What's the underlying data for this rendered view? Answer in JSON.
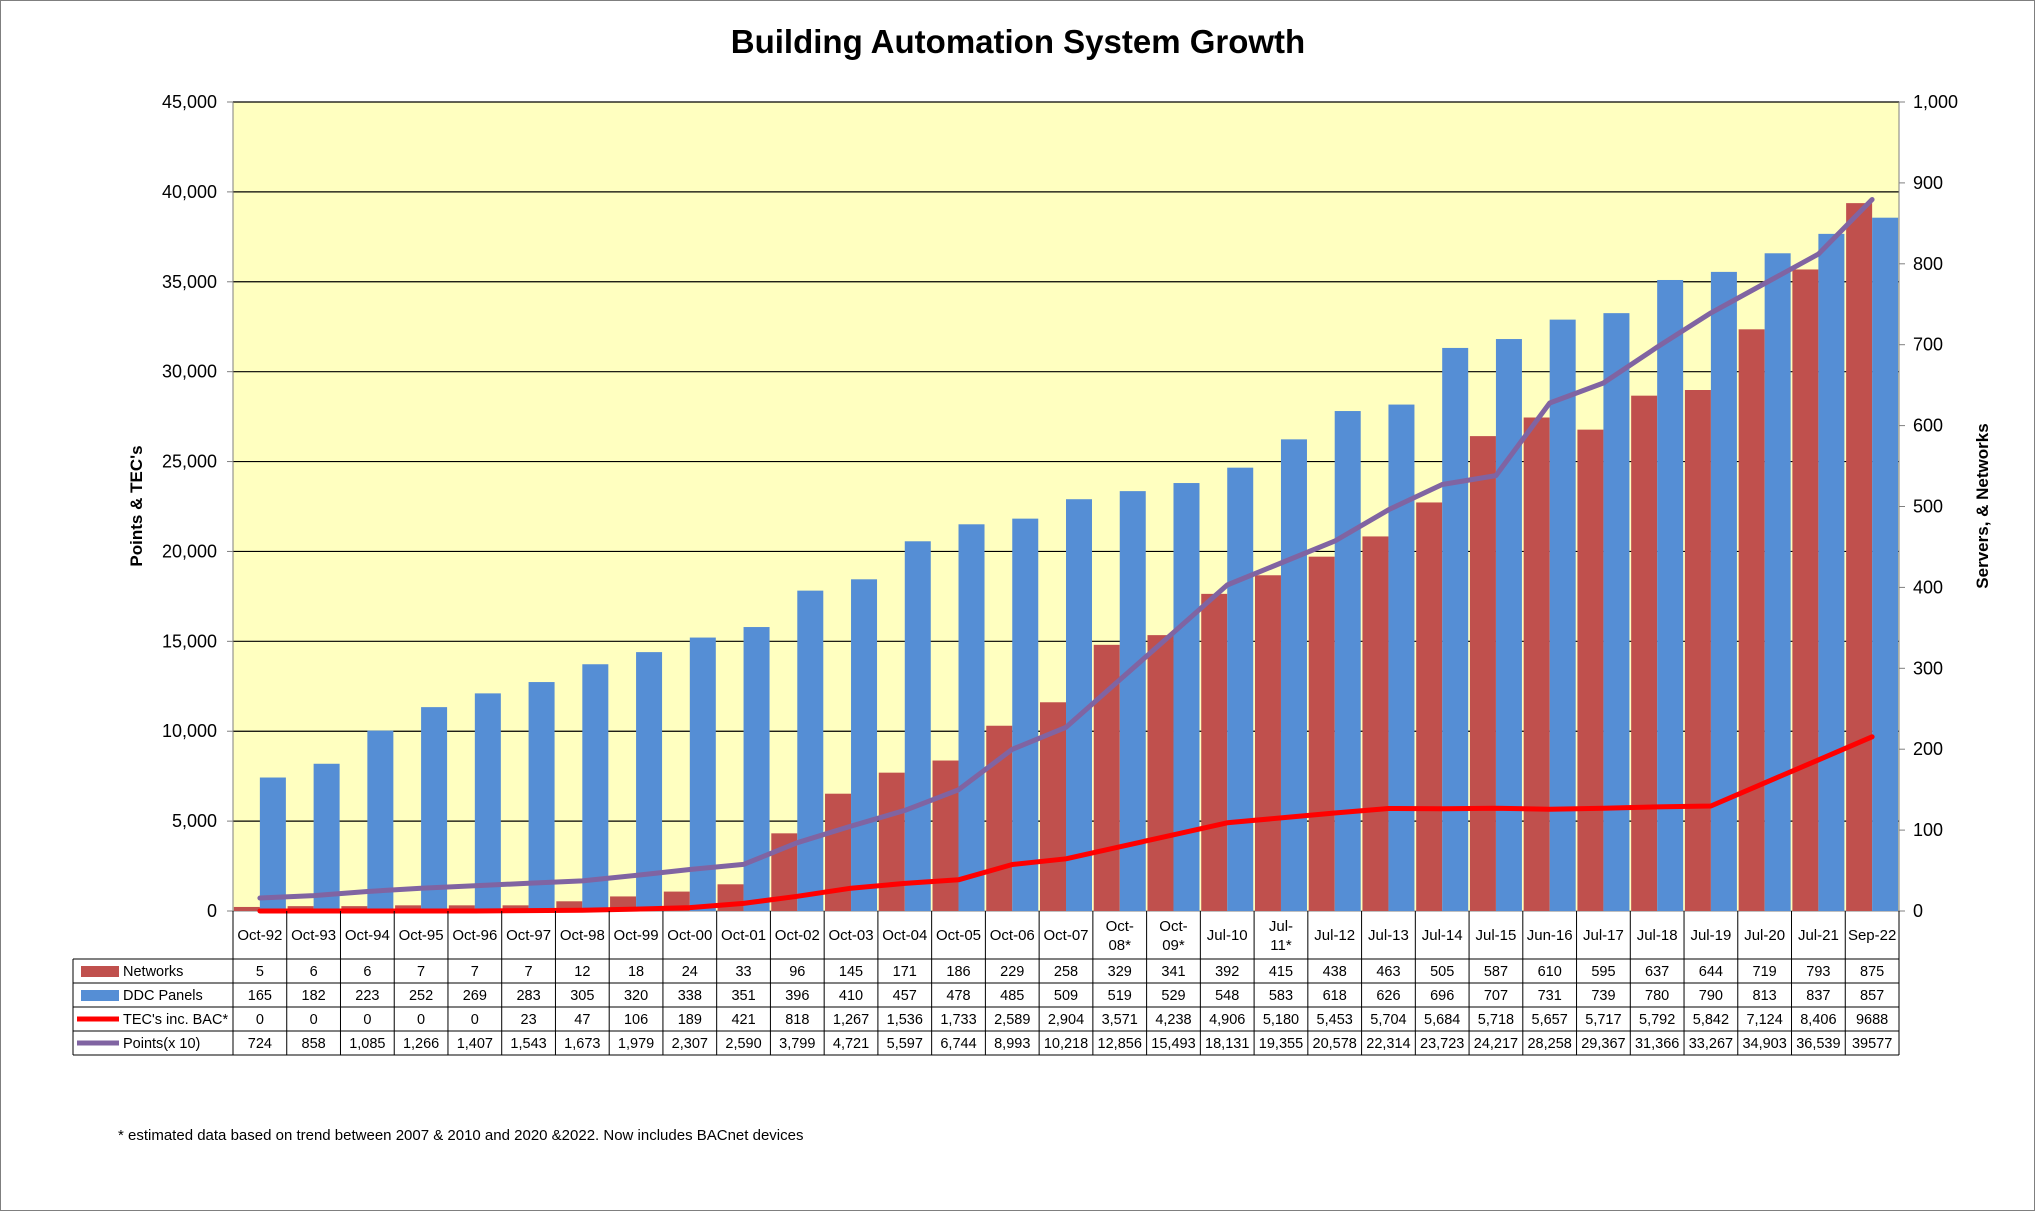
{
  "chart_data": {
    "type": "bar",
    "title": "Building Automation System Growth",
    "ylabel": "Points & TEC's",
    "y2label": "Servers, & Networks",
    "ylim": [
      0,
      45000
    ],
    "y2lim": [
      0,
      1000
    ],
    "yticks": [
      "0",
      "5,000",
      "10,000",
      "15,000",
      "20,000",
      "25,000",
      "30,000",
      "35,000",
      "40,000",
      "45,000"
    ],
    "y2ticks": [
      "0",
      "100",
      "200",
      "300",
      "400",
      "500",
      "600",
      "700",
      "800",
      "900",
      "1,000"
    ],
    "plot_background": "#ffffc0",
    "categories": [
      "Oct-92",
      "Oct-93",
      "Oct-94",
      "Oct-95",
      "Oct-96",
      "Oct-97",
      "Oct-98",
      "Oct-99",
      "Oct-00",
      "Oct-01",
      "Oct-02",
      "Oct-03",
      "Oct-04",
      "Oct-05",
      "Oct-06",
      "Oct-07",
      "Oct-08*",
      "Oct-09*",
      "Jul-10",
      "Jul-11*",
      "Jul-12",
      "Jul-13",
      "Jul-14",
      "Jul-15",
      "Jun-16",
      "Jul-17",
      "Jul-18",
      "Jul-19",
      "Jul-20",
      "Jul-21",
      "Sep-22"
    ],
    "category_lines": [
      [
        "Oct-92"
      ],
      [
        "Oct-93"
      ],
      [
        "Oct-94"
      ],
      [
        "Oct-95"
      ],
      [
        "Oct-96"
      ],
      [
        "Oct-97"
      ],
      [
        "Oct-98"
      ],
      [
        "Oct-99"
      ],
      [
        "Oct-00"
      ],
      [
        "Oct-01"
      ],
      [
        "Oct-02"
      ],
      [
        "Oct-03"
      ],
      [
        "Oct-04"
      ],
      [
        "Oct-05"
      ],
      [
        "Oct-06"
      ],
      [
        "Oct-07"
      ],
      [
        "Oct-",
        "08*"
      ],
      [
        "Oct-",
        "09*"
      ],
      [
        "Jul-10"
      ],
      [
        "Jul-",
        "11*"
      ],
      [
        "Jul-12"
      ],
      [
        "Jul-13"
      ],
      [
        "Jul-14"
      ],
      [
        "Jul-15"
      ],
      [
        "Jun-16"
      ],
      [
        "Jul-17"
      ],
      [
        "Jul-18"
      ],
      [
        "Jul-19"
      ],
      [
        "Jul-20"
      ],
      [
        "Jul-21"
      ],
      [
        "Sep-22"
      ]
    ],
    "series": [
      {
        "name": "Networks",
        "type": "bar",
        "axis": "secondary",
        "color": "#c0504d",
        "values": [
          5,
          6,
          6,
          7,
          7,
          7,
          12,
          18,
          24,
          33,
          96,
          145,
          171,
          186,
          229,
          258,
          329,
          341,
          392,
          415,
          438,
          463,
          505,
          587,
          610,
          595,
          637,
          644,
          719,
          793,
          875
        ],
        "labels": [
          "5",
          "6",
          "6",
          "7",
          "7",
          "7",
          "12",
          "18",
          "24",
          "33",
          "96",
          "145",
          "171",
          "186",
          "229",
          "258",
          "329",
          "341",
          "392",
          "415",
          "438",
          "463",
          "505",
          "587",
          "610",
          "595",
          "637",
          "644",
          "719",
          "793",
          "875"
        ]
      },
      {
        "name": "DDC Panels",
        "type": "bar",
        "axis": "secondary",
        "color": "#558ed5",
        "values": [
          165,
          182,
          223,
          252,
          269,
          283,
          305,
          320,
          338,
          351,
          396,
          410,
          457,
          478,
          485,
          509,
          519,
          529,
          548,
          583,
          618,
          626,
          696,
          707,
          731,
          739,
          780,
          790,
          813,
          837,
          857
        ],
        "labels": [
          "165",
          "182",
          "223",
          "252",
          "269",
          "283",
          "305",
          "320",
          "338",
          "351",
          "396",
          "410",
          "457",
          "478",
          "485",
          "509",
          "519",
          "529",
          "548",
          "583",
          "618",
          "626",
          "696",
          "707",
          "731",
          "739",
          "780",
          "790",
          "813",
          "837",
          "857"
        ]
      },
      {
        "name": "TEC's inc. BAC*",
        "type": "line",
        "axis": "primary",
        "color": "#ff0000",
        "values": [
          0,
          0,
          0,
          0,
          0,
          23,
          47,
          106,
          189,
          421,
          818,
          1267,
          1536,
          1733,
          2589,
          2904,
          3571,
          4238,
          4906,
          5180,
          5453,
          5704,
          5684,
          5718,
          5657,
          5717,
          5792,
          5842,
          7124,
          8406,
          9688
        ],
        "labels": [
          "0",
          "0",
          "0",
          "0",
          "0",
          "23",
          "47",
          "106",
          "189",
          "421",
          "818",
          "1,267",
          "1,536",
          "1,733",
          "2,589",
          "2,904",
          "3,571",
          "4,238",
          "4,906",
          "5,180",
          "5,453",
          "5,704",
          "5,684",
          "5,718",
          "5,657",
          "5,717",
          "5,792",
          "5,842",
          "7,124",
          "8,406",
          "9688"
        ]
      },
      {
        "name": "Points(x 10)",
        "type": "line",
        "axis": "primary",
        "color": "#8064a2",
        "values": [
          724,
          858,
          1085,
          1266,
          1407,
          1543,
          1673,
          1979,
          2307,
          2590,
          3799,
          4721,
          5597,
          6744,
          8993,
          10218,
          12856,
          15493,
          18131,
          19355,
          20578,
          22314,
          23723,
          24217,
          28258,
          29367,
          31366,
          33267,
          34903,
          36539,
          39577
        ],
        "labels": [
          "724",
          "858",
          "1,085",
          "1,266",
          "1,407",
          "1,543",
          "1,673",
          "1,979",
          "2,307",
          "2,590",
          "3,799",
          "4,721",
          "5,597",
          "6,744",
          "8,993",
          "10,218",
          "12,856",
          "15,493",
          "18,131",
          "19,355",
          "20,578",
          "22,314",
          "23,723",
          "24,217",
          "28,258",
          "29,367",
          "31,366",
          "33,267",
          "34,903",
          "36,539",
          "39577"
        ]
      }
    ],
    "footnote": "* estimated data based on trend between 2007 & 2010 and 2020 &2022. Now includes BACnet devices"
  }
}
